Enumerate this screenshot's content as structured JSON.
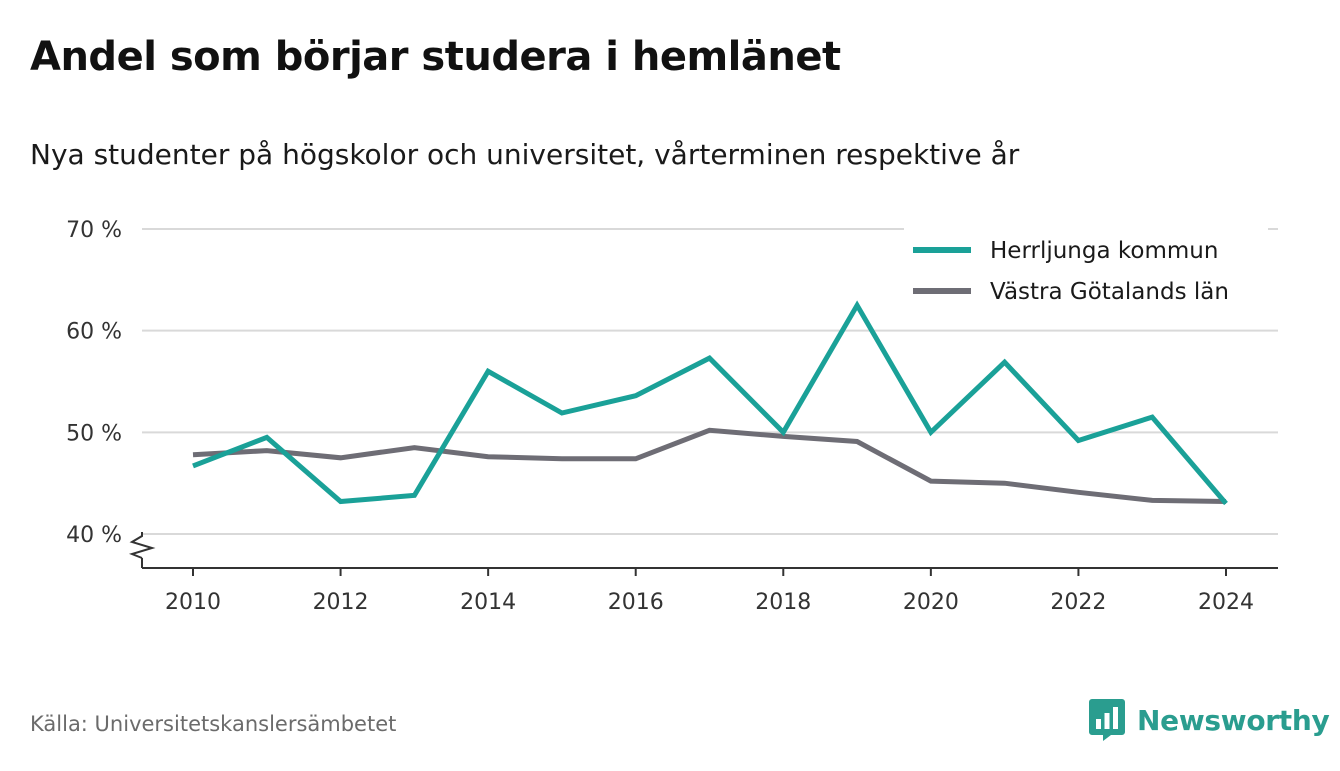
{
  "chart_data": {
    "type": "line",
    "title": "Andel som börjar studera i hemlänet",
    "subtitle": "Nya studenter på högskolor och universitet, vårterminen respektive år",
    "x": [
      2010,
      2011,
      2012,
      2013,
      2014,
      2015,
      2016,
      2017,
      2018,
      2019,
      2020,
      2021,
      2022,
      2023,
      2024
    ],
    "x_ticks": [
      2010,
      2012,
      2014,
      2016,
      2018,
      2020,
      2022,
      2024
    ],
    "y_ticks": [
      40,
      50,
      60,
      70
    ],
    "y_tick_suffix": " %",
    "ylim": [
      36.5,
      70
    ],
    "axis_break": true,
    "grid": true,
    "legend_position": "top-right",
    "series": [
      {
        "name": "Herrljunga kommun",
        "color": "#1aa198",
        "values": [
          46.7,
          49.5,
          43.2,
          43.8,
          56.0,
          51.9,
          53.6,
          57.3,
          50.0,
          62.5,
          50.0,
          56.9,
          49.2,
          51.5,
          43.0
        ]
      },
      {
        "name": "Västra Götalands län",
        "color": "#6e6d75",
        "values": [
          47.8,
          48.2,
          47.5,
          48.5,
          47.6,
          47.4,
          47.4,
          50.2,
          49.6,
          49.1,
          45.2,
          45.0,
          44.1,
          43.3,
          43.2
        ]
      }
    ]
  },
  "source": "Källa: Universitetskanslersämbetet",
  "brand": {
    "name": "Newsworthy",
    "color": "#2a9d8f"
  }
}
